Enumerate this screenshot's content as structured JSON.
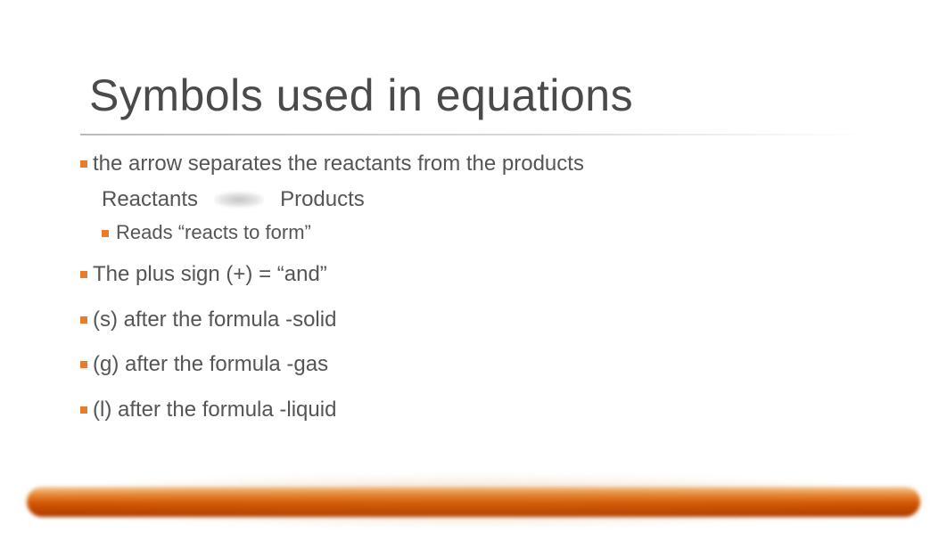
{
  "colors": {
    "title_text": "#4a4a4a",
    "body_text": "#555555",
    "bullet": "#e97b2e",
    "rule_gray": "#b4b4b4",
    "bar_top": "#f6cfa0",
    "bar_mid1": "#e98c3c",
    "bar_mid2": "#d35400",
    "bar_bottom": "#a83a00",
    "background": "#ffffff"
  },
  "typography": {
    "title_fontsize": 50,
    "body_fontsize": 24,
    "sub_fontsize": 22,
    "font_family": "Segoe UI"
  },
  "title": "Symbols used in equations",
  "bullets": [
    {
      "text": "the arrow separates the reactants from the products",
      "sub_reaction": {
        "left": "Reactants",
        "right": "Products"
      },
      "sub_bullet": "Reads “reacts to form”"
    },
    {
      "text": "The plus sign (+) = “and”"
    },
    {
      "text": "(s) after the formula -solid"
    },
    {
      "text": "(g) after the formula -gas"
    },
    {
      "text": "(l) after the formula -liquid"
    }
  ]
}
